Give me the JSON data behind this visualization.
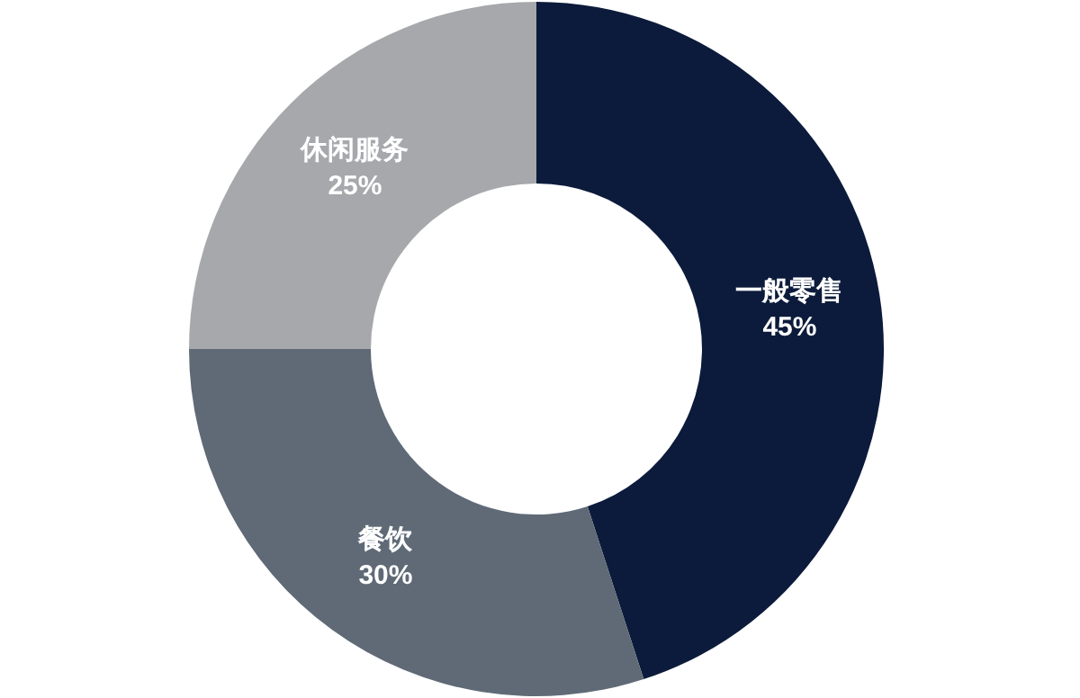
{
  "chart_data": {
    "type": "donut",
    "categories": [
      "一般零售",
      "餐饮",
      "休闲服务"
    ],
    "values": [
      45,
      30,
      25
    ],
    "value_labels": [
      "45%",
      "30%",
      "25%"
    ],
    "colors": [
      "#0c1b3b",
      "#5f6a76",
      "#a6a8ac"
    ]
  }
}
